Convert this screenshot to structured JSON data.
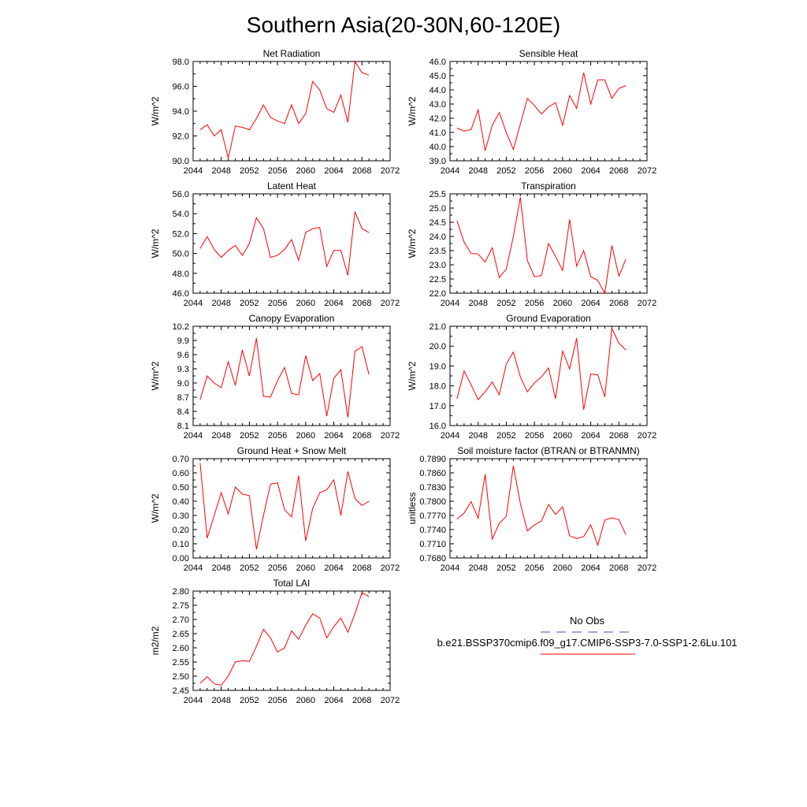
{
  "title": "Southern Asia(20-30N,60-120E)",
  "legend": {
    "obs_label": "No Obs",
    "obs_color": "#4b4bb4",
    "model_label": "b.e21.BSSP370cmip6.f09_g17.CMIP6-SSP3-7.0-SSP1-2.6Lu.101",
    "model_color": "#ff0000"
  },
  "line_color": "#ff0000",
  "chart_data": [
    {
      "type": "line",
      "title": "Net Radiation",
      "ylabel": "W/m^2",
      "xlim": [
        2044,
        2072
      ],
      "ylim": [
        90.0,
        98.0
      ],
      "xticks": [
        "2044",
        "2048",
        "2052",
        "2056",
        "2060",
        "2064",
        "2068",
        "2072"
      ],
      "yticks": [
        "90.0",
        "92.0",
        "94.0",
        "96.0",
        "98.0"
      ],
      "x": [
        2045,
        2046,
        2047,
        2048,
        2049,
        2050,
        2051,
        2052,
        2053,
        2054,
        2055,
        2056,
        2057,
        2058,
        2059,
        2060,
        2061,
        2062,
        2063,
        2064,
        2065,
        2066,
        2067,
        2068,
        2069
      ],
      "series": [
        {
          "values": [
            92.5,
            92.9,
            92.0,
            92.5,
            90.2,
            92.8,
            92.7,
            92.5,
            93.4,
            94.5,
            93.5,
            93.2,
            93.0,
            94.5,
            93.0,
            93.8,
            96.4,
            95.7,
            94.2,
            93.9,
            95.3,
            93.1,
            98.0,
            97.1,
            96.9
          ]
        }
      ]
    },
    {
      "type": "line",
      "title": "Sensible Heat",
      "ylabel": "W/m^2",
      "xlim": [
        2044,
        2072
      ],
      "ylim": [
        39.0,
        46.0
      ],
      "xticks": [
        "2044",
        "2048",
        "2052",
        "2056",
        "2060",
        "2064",
        "2068",
        "2072"
      ],
      "yticks": [
        "39.0",
        "40.0",
        "41.0",
        "42.0",
        "43.0",
        "44.0",
        "45.0",
        "46.0"
      ],
      "x": [
        2045,
        2046,
        2047,
        2048,
        2049,
        2050,
        2051,
        2052,
        2053,
        2054,
        2055,
        2056,
        2057,
        2058,
        2059,
        2060,
        2061,
        2062,
        2063,
        2064,
        2065,
        2066,
        2067,
        2068,
        2069
      ],
      "series": [
        {
          "values": [
            41.3,
            41.1,
            41.2,
            42.6,
            39.7,
            41.5,
            42.4,
            41.0,
            39.8,
            41.6,
            43.4,
            42.9,
            42.3,
            42.8,
            43.1,
            41.5,
            43.6,
            42.7,
            45.2,
            43.0,
            44.7,
            44.7,
            43.4,
            44.1,
            44.3
          ]
        }
      ]
    },
    {
      "type": "line",
      "title": "Latent Heat",
      "ylabel": "W/m^2",
      "xlim": [
        2044,
        2072
      ],
      "ylim": [
        46.0,
        56.0
      ],
      "xticks": [
        "2044",
        "2048",
        "2052",
        "2056",
        "2060",
        "2064",
        "2068",
        "2072"
      ],
      "yticks": [
        "46.0",
        "48.0",
        "50.0",
        "52.0",
        "54.0",
        "56.0"
      ],
      "x": [
        2045,
        2046,
        2047,
        2048,
        2049,
        2050,
        2051,
        2052,
        2053,
        2054,
        2055,
        2056,
        2057,
        2058,
        2059,
        2060,
        2061,
        2062,
        2063,
        2064,
        2065,
        2066,
        2067,
        2068,
        2069
      ],
      "series": [
        {
          "values": [
            50.5,
            51.7,
            50.4,
            49.6,
            50.3,
            50.8,
            49.8,
            51.0,
            53.6,
            52.5,
            49.6,
            49.8,
            50.4,
            51.4,
            49.3,
            52.1,
            52.5,
            52.6,
            48.7,
            50.3,
            50.3,
            47.8,
            54.2,
            52.5,
            52.1
          ]
        }
      ]
    },
    {
      "type": "line",
      "title": "Transpiration",
      "ylabel": "W/m^2",
      "xlim": [
        2044,
        2072
      ],
      "ylim": [
        22.0,
        25.5
      ],
      "xticks": [
        "2044",
        "2048",
        "2052",
        "2056",
        "2060",
        "2064",
        "2068",
        "2072"
      ],
      "yticks": [
        "22.0",
        "22.5",
        "23.0",
        "23.5",
        "24.0",
        "24.5",
        "25.0",
        "25.5"
      ],
      "x": [
        2045,
        2046,
        2047,
        2048,
        2049,
        2050,
        2051,
        2052,
        2053,
        2054,
        2055,
        2056,
        2057,
        2058,
        2059,
        2060,
        2061,
        2062,
        2063,
        2064,
        2065,
        2066,
        2067,
        2068,
        2069
      ],
      "series": [
        {
          "values": [
            24.55,
            23.8,
            23.4,
            23.38,
            23.1,
            23.6,
            22.55,
            22.85,
            24.0,
            25.38,
            23.15,
            22.58,
            22.62,
            23.75,
            23.3,
            22.8,
            24.6,
            22.95,
            23.5,
            22.58,
            22.45,
            22.0,
            23.68,
            22.6,
            23.2
          ]
        }
      ]
    },
    {
      "type": "line",
      "title": "Canopy Evaporation",
      "ylabel": "W/m^2",
      "xlim": [
        2044,
        2072
      ],
      "ylim": [
        8.1,
        10.2
      ],
      "xticks": [
        "2044",
        "2048",
        "2052",
        "2056",
        "2060",
        "2064",
        "2068",
        "2072"
      ],
      "yticks": [
        "8.1",
        "8.4",
        "8.7",
        "9.0",
        "9.3",
        "9.6",
        "9.9",
        "10.2"
      ],
      "x": [
        2045,
        2046,
        2047,
        2048,
        2049,
        2050,
        2051,
        2052,
        2053,
        2054,
        2055,
        2056,
        2057,
        2058,
        2059,
        2060,
        2061,
        2062,
        2063,
        2064,
        2065,
        2066,
        2067,
        2068,
        2069
      ],
      "series": [
        {
          "values": [
            8.65,
            9.15,
            9.0,
            8.9,
            9.45,
            8.95,
            9.7,
            9.15,
            9.95,
            8.72,
            8.7,
            9.05,
            9.33,
            8.78,
            8.75,
            9.58,
            9.05,
            9.2,
            8.3,
            9.1,
            9.28,
            8.27,
            9.67,
            9.77,
            9.18
          ]
        }
      ]
    },
    {
      "type": "line",
      "title": "Ground Evaporation",
      "ylabel": "W/m^2",
      "xlim": [
        2044,
        2072
      ],
      "ylim": [
        16.0,
        21.0
      ],
      "xticks": [
        "2044",
        "2048",
        "2052",
        "2056",
        "2060",
        "2064",
        "2068",
        "2072"
      ],
      "yticks": [
        "16.0",
        "17.0",
        "18.0",
        "19.0",
        "20.0",
        "21.0"
      ],
      "x": [
        2045,
        2046,
        2047,
        2048,
        2049,
        2050,
        2051,
        2052,
        2053,
        2054,
        2055,
        2056,
        2057,
        2058,
        2059,
        2060,
        2061,
        2062,
        2063,
        2064,
        2065,
        2066,
        2067,
        2068,
        2069
      ],
      "series": [
        {
          "values": [
            17.35,
            18.75,
            18.05,
            17.3,
            17.7,
            18.2,
            17.55,
            19.1,
            19.7,
            18.45,
            17.7,
            18.15,
            18.45,
            18.9,
            17.35,
            19.75,
            18.85,
            20.4,
            16.8,
            18.6,
            18.55,
            17.45,
            20.9,
            20.15,
            19.8
          ]
        }
      ]
    },
    {
      "type": "line",
      "title": "Ground Heat + Snow Melt",
      "ylabel": "W/m^2",
      "xlim": [
        2044,
        2072
      ],
      "ylim": [
        0.0,
        0.7
      ],
      "xticks": [
        "2044",
        "2048",
        "2052",
        "2056",
        "2060",
        "2064",
        "2068",
        "2072"
      ],
      "yticks": [
        "0.00",
        "0.10",
        "0.20",
        "0.30",
        "0.40",
        "0.50",
        "0.60",
        "0.70"
      ],
      "x": [
        2045,
        2046,
        2047,
        2048,
        2049,
        2050,
        2051,
        2052,
        2053,
        2054,
        2055,
        2056,
        2057,
        2058,
        2059,
        2060,
        2061,
        2062,
        2063,
        2064,
        2065,
        2066,
        2067,
        2068,
        2069
      ],
      "series": [
        {
          "values": [
            0.67,
            0.14,
            0.3,
            0.46,
            0.31,
            0.5,
            0.45,
            0.44,
            0.06,
            0.3,
            0.52,
            0.53,
            0.34,
            0.29,
            0.58,
            0.12,
            0.35,
            0.46,
            0.48,
            0.55,
            0.3,
            0.61,
            0.42,
            0.37,
            0.4
          ]
        }
      ]
    },
    {
      "type": "line",
      "title": "Soil moisture factor (BTRAN or BTRANMN)",
      "ylabel": "unitless",
      "xlim": [
        2044,
        2072
      ],
      "ylim": [
        0.768,
        0.789
      ],
      "xticks": [
        "2044",
        "2048",
        "2052",
        "2056",
        "2060",
        "2064",
        "2068",
        "2072"
      ],
      "yticks": [
        "0.7680",
        "0.7710",
        "0.7740",
        "0.7770",
        "0.7800",
        "0.7830",
        "0.7860",
        "0.7890"
      ],
      "x": [
        2045,
        2046,
        2047,
        2048,
        2049,
        2050,
        2051,
        2052,
        2053,
        2054,
        2055,
        2056,
        2057,
        2058,
        2059,
        2060,
        2061,
        2062,
        2063,
        2064,
        2065,
        2066,
        2067,
        2068,
        2069
      ],
      "series": [
        {
          "values": [
            0.7762,
            0.7775,
            0.7799,
            0.7764,
            0.7857,
            0.772,
            0.7753,
            0.7768,
            0.7875,
            0.7795,
            0.7737,
            0.775,
            0.7758,
            0.7793,
            0.7772,
            0.7788,
            0.7727,
            0.7721,
            0.7725,
            0.775,
            0.7707,
            0.776,
            0.7765,
            0.7761,
            0.7729
          ]
        }
      ]
    },
    {
      "type": "line",
      "title": "Total LAI",
      "ylabel": "m2/m2",
      "xlim": [
        2044,
        2072
      ],
      "ylim": [
        2.45,
        2.8
      ],
      "xticks": [
        "2044",
        "2048",
        "2052",
        "2056",
        "2060",
        "2064",
        "2068",
        "2072"
      ],
      "yticks": [
        "2.45",
        "2.50",
        "2.55",
        "2.60",
        "2.65",
        "2.70",
        "2.75",
        "2.80"
      ],
      "x": [
        2045,
        2046,
        2047,
        2048,
        2049,
        2050,
        2051,
        2052,
        2053,
        2054,
        2055,
        2056,
        2057,
        2058,
        2059,
        2060,
        2061,
        2062,
        2063,
        2064,
        2065,
        2066,
        2067,
        2068,
        2069
      ],
      "series": [
        {
          "values": [
            2.475,
            2.498,
            2.473,
            2.468,
            2.5,
            2.55,
            2.555,
            2.552,
            2.605,
            2.665,
            2.635,
            2.585,
            2.6,
            2.66,
            2.63,
            2.68,
            2.72,
            2.705,
            2.635,
            2.675,
            2.705,
            2.655,
            2.72,
            2.795,
            2.78
          ]
        }
      ]
    }
  ]
}
